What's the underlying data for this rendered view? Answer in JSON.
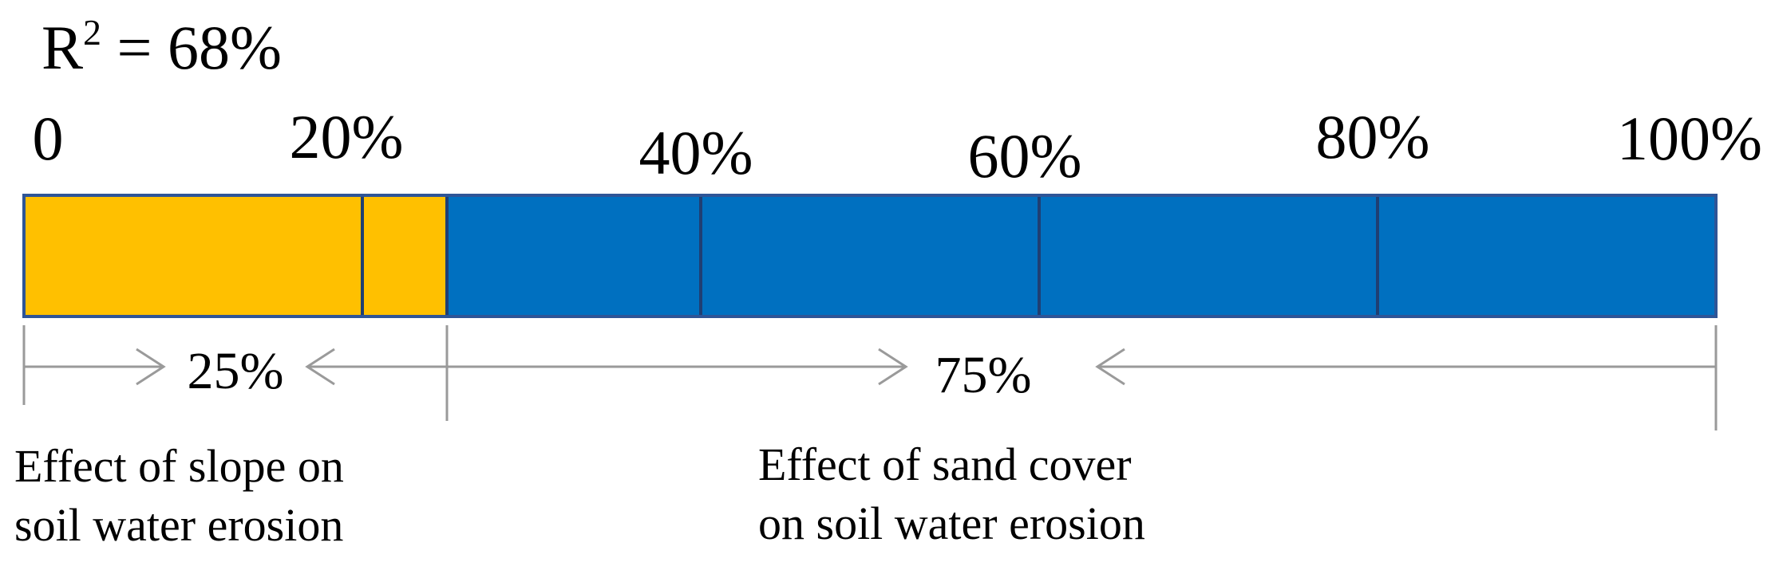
{
  "chart_data": {
    "type": "bar",
    "orientation": "horizontal-stacked",
    "title_prefix": "R",
    "title_exponent": "2",
    "title_suffix": " = 68%",
    "xlim": [
      0,
      100
    ],
    "x_ticks": [
      0,
      20,
      40,
      60,
      80,
      100
    ],
    "x_tick_labels": [
      "0",
      "20%",
      "40%",
      "60%",
      "80%",
      "100%"
    ],
    "segments": [
      {
        "value": 25,
        "label": "25%",
        "color": "#FFC000",
        "description_lines": [
          "Effect of slope on",
          "soil water erosion"
        ]
      },
      {
        "value": 75,
        "label": "75%",
        "color": "#0070C0",
        "description_lines": [
          "Effect of sand cover",
          "on soil water erosion"
        ]
      }
    ],
    "bar_border_color": "#2E5597",
    "divider_color": "#1F3F73",
    "grid": false,
    "legend": "none"
  }
}
